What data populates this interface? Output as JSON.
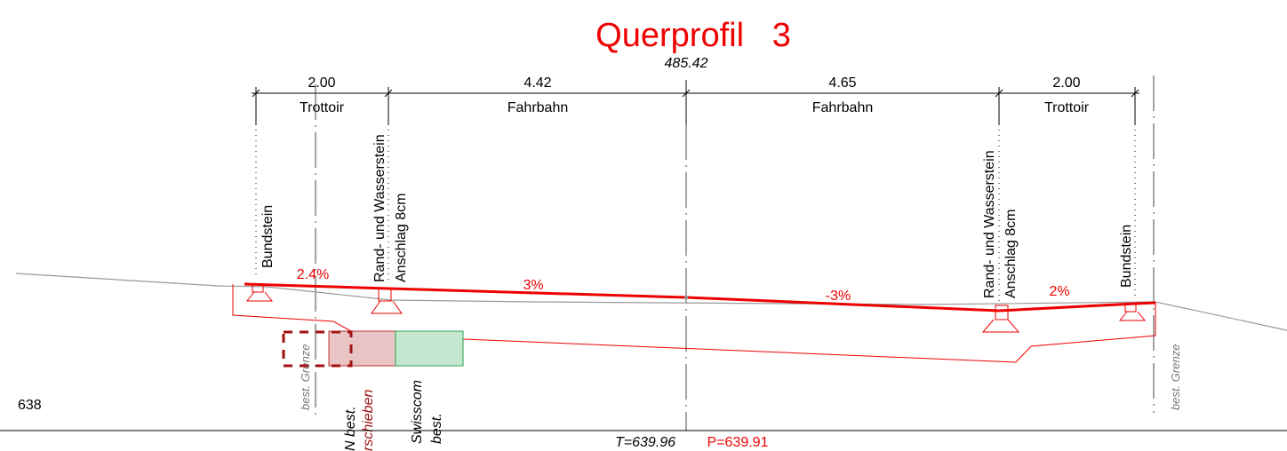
{
  "title": "Querprofil   3",
  "station": "485.42",
  "dimensions": [
    {
      "length": "2.00",
      "label": "Trottoir"
    },
    {
      "length": "4.42",
      "label": "Fahrbahn"
    },
    {
      "length": "4.65",
      "label": "Fahrbahn"
    },
    {
      "length": "2.00",
      "label": "Trottoir"
    }
  ],
  "elements": {
    "left_bundstein": "Bundstein",
    "left_curb": [
      "Rand- und Wasserstein",
      "Anschlag 8cm"
    ],
    "right_curb": [
      "Rand- und Wasserstein",
      "Anschlag 8cm"
    ],
    "right_bundstein": "Bundstein"
  },
  "slopes": [
    "2.4%",
    "3%",
    "-3%",
    "2%"
  ],
  "boundaries": [
    "best. Grenze",
    "best. Grenze"
  ],
  "elevation_label": "638",
  "pipes": {
    "ew": "N best.",
    "ew_note": "rschieben",
    "swisscom": [
      "Swisscom",
      "best."
    ]
  },
  "levels": {
    "terrain": "T=639.96",
    "project": "P=639.91"
  }
}
